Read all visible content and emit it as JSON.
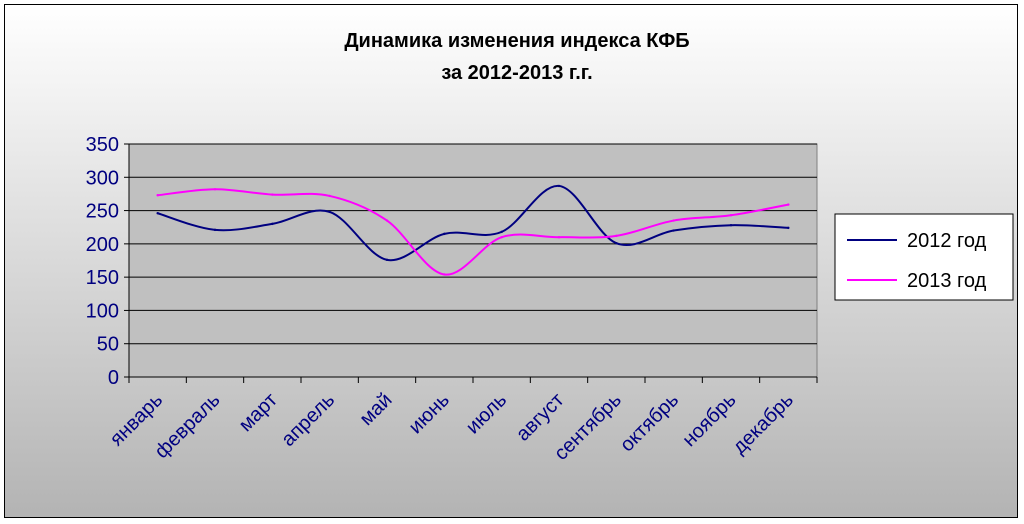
{
  "chart_data": {
    "type": "line",
    "title": [
      "Динамика изменения индекса КФБ",
      "за 2012-2013 г.г."
    ],
    "xlabel": "",
    "ylabel": "",
    "categories": [
      "январь",
      "февраль",
      "март",
      "апрель",
      "май",
      "июнь",
      "июль",
      "август",
      "сентябрь",
      "октябрь",
      "ноябрь",
      "декабрь"
    ],
    "yticks": [
      "0",
      "50",
      "100",
      "150",
      "200",
      "250",
      "300",
      "350"
    ],
    "ylim": [
      0,
      350
    ],
    "grid": true,
    "legend_position": "right",
    "series": [
      {
        "name": "2012 год",
        "color": "#000080",
        "values": [
          246,
          221,
          230,
          248,
          176,
          215,
          218,
          287,
          201,
          220,
          228,
          224
        ]
      },
      {
        "name": "2013 год",
        "color": "#ff00ff",
        "values": [
          273,
          282,
          274,
          272,
          235,
          154,
          210,
          210,
          212,
          235,
          243,
          259
        ]
      }
    ]
  }
}
